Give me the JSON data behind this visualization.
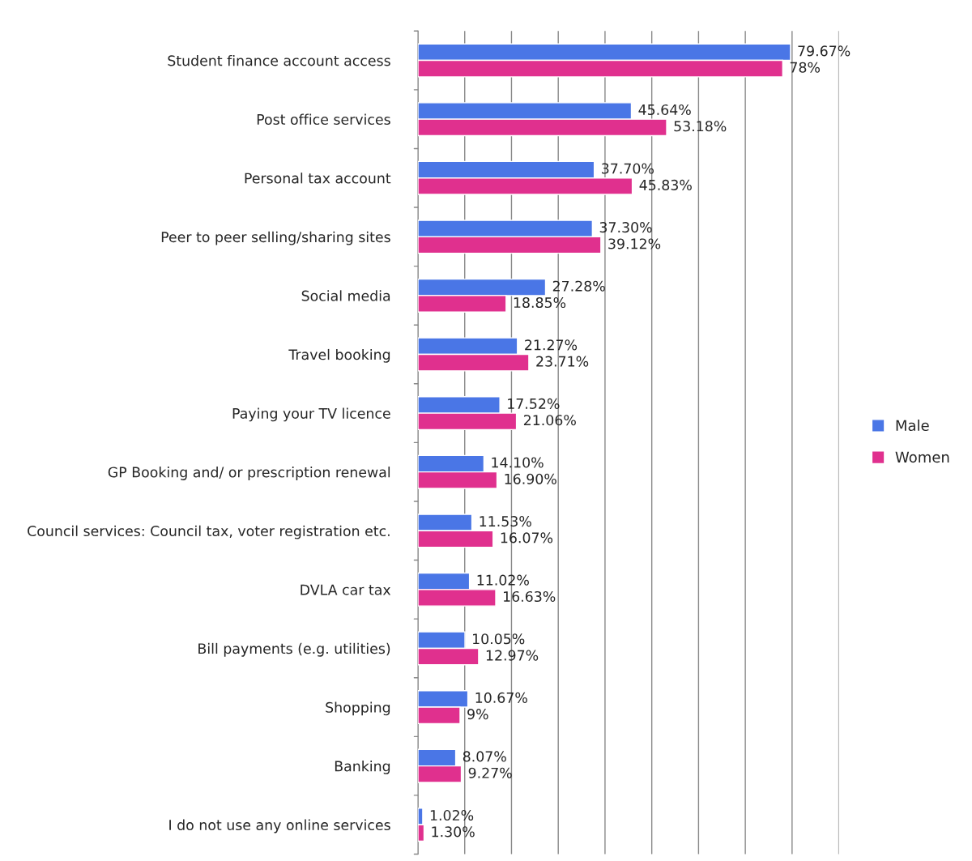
{
  "chart_data": {
    "type": "bar",
    "orientation": "horizontal",
    "categories": [
      "Student finance account access",
      "Post office services",
      "Personal tax account",
      "Peer to peer selling/sharing sites",
      "Social media",
      "Travel booking",
      "Paying your TV licence",
      "GP Booking and/ or prescription renewal",
      "Council services: Council tax, voter registration etc.",
      "DVLA car tax",
      "Bill payments (e.g. utilities)",
      "Shopping",
      "Banking",
      "I do not use any online services"
    ],
    "series": [
      {
        "name": "Male",
        "color": "#4a76e6",
        "values": [
          79.67,
          45.64,
          37.7,
          37.3,
          27.28,
          21.27,
          17.52,
          14.1,
          11.53,
          11.02,
          10.05,
          10.67,
          8.07,
          1.02
        ],
        "value_labels": [
          "79.67%",
          "45.64%",
          "37.70%",
          "37.30%",
          "27.28%",
          "21.27%",
          "17.52%",
          "14.10%",
          "11.53%",
          "11.02%",
          "10.05%",
          "10.67%",
          "8.07%",
          "1.02%"
        ]
      },
      {
        "name": "Women",
        "color": "#e0308e",
        "values": [
          78,
          53.18,
          45.83,
          39.12,
          18.85,
          23.71,
          21.06,
          16.9,
          16.07,
          16.63,
          12.97,
          9,
          9.27,
          1.3
        ],
        "value_labels": [
          "78%",
          "53.18%",
          "45.83%",
          "39.12%",
          "18.85%",
          "23.71%",
          "21.06%",
          "16.90%",
          "16.07%",
          "16.63%",
          "12.97%",
          "9%",
          "9.27%",
          "1.30%"
        ]
      }
    ],
    "xlim": [
      0,
      90
    ],
    "xticks": [
      {
        "value": 0,
        "label": null
      },
      {
        "value": 10,
        "label": null
      },
      {
        "value": 20,
        "label": null
      },
      {
        "value": 30,
        "label": null
      },
      {
        "value": 40,
        "label": null
      },
      {
        "value": 50,
        "label": null
      },
      {
        "value": 60,
        "label": null
      },
      {
        "value": 70,
        "label": null
      },
      {
        "value": 80,
        "label": null
      },
      {
        "value": 90,
        "label": null
      }
    ],
    "grid": "x",
    "legend": "right",
    "tick_labels": "y"
  }
}
